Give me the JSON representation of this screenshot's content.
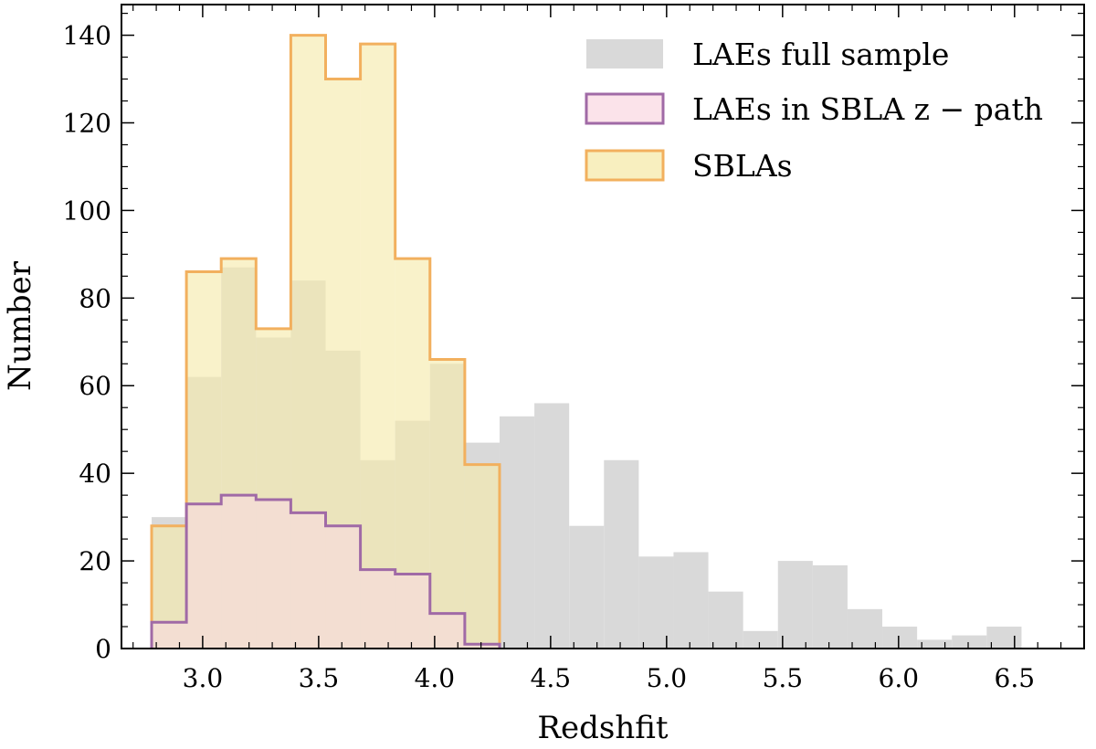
{
  "chart_data": {
    "type": "histogram",
    "title": "",
    "xlabel": "Redshfit",
    "ylabel": "Number",
    "xlim": [
      2.65,
      6.8
    ],
    "ylim": [
      0,
      147
    ],
    "xticks": [
      3.0,
      3.5,
      4.0,
      4.5,
      5.0,
      5.5,
      6.0,
      6.5
    ],
    "xtick_labels": [
      "3.0",
      "3.5",
      "4.0",
      "4.5",
      "5.0",
      "5.5",
      "6.0",
      "6.5"
    ],
    "yticks": [
      0,
      20,
      40,
      60,
      80,
      100,
      120,
      140
    ],
    "ytick_labels": [
      "0",
      "20",
      "40",
      "60",
      "80",
      "100",
      "120",
      "140"
    ],
    "grid": false,
    "legend_position": "top-right",
    "series": [
      {
        "name": "LAEs full sample",
        "style": "filled",
        "color": "#d9d9d9",
        "bin_edges": [
          2.78,
          2.93,
          3.08,
          3.23,
          3.38,
          3.53,
          3.68,
          3.83,
          3.98,
          4.13,
          4.28,
          4.43,
          4.58,
          4.73,
          4.88,
          5.03,
          5.18,
          5.33,
          5.48,
          5.63,
          5.78,
          5.93,
          6.08,
          6.23,
          6.38,
          6.53
        ],
        "counts": [
          30,
          62,
          87,
          71,
          84,
          68,
          43,
          52,
          65,
          47,
          53,
          56,
          28,
          43,
          21,
          22,
          13,
          4,
          20,
          19,
          9,
          5,
          2,
          3,
          5
        ]
      },
      {
        "name": "LAEs in SBLA z − path",
        "style": "step-filled",
        "color": "#f9d9e3",
        "edge_color": "#a06aa6",
        "bin_edges": [
          2.78,
          2.93,
          3.08,
          3.23,
          3.38,
          3.53,
          3.68,
          3.83,
          3.98,
          4.13,
          4.28
        ],
        "counts": [
          6,
          33,
          35,
          34,
          31,
          28,
          18,
          17,
          8,
          1
        ]
      },
      {
        "name": "SBLAs",
        "style": "step-filled",
        "color": "#f5eaaa",
        "edge_color": "#f2b05e",
        "bin_edges": [
          2.78,
          2.93,
          3.08,
          3.23,
          3.38,
          3.53,
          3.68,
          3.83,
          3.98,
          4.13,
          4.28
        ],
        "counts": [
          28,
          86,
          89,
          73,
          140,
          130,
          138,
          89,
          66,
          42
        ]
      }
    ]
  }
}
